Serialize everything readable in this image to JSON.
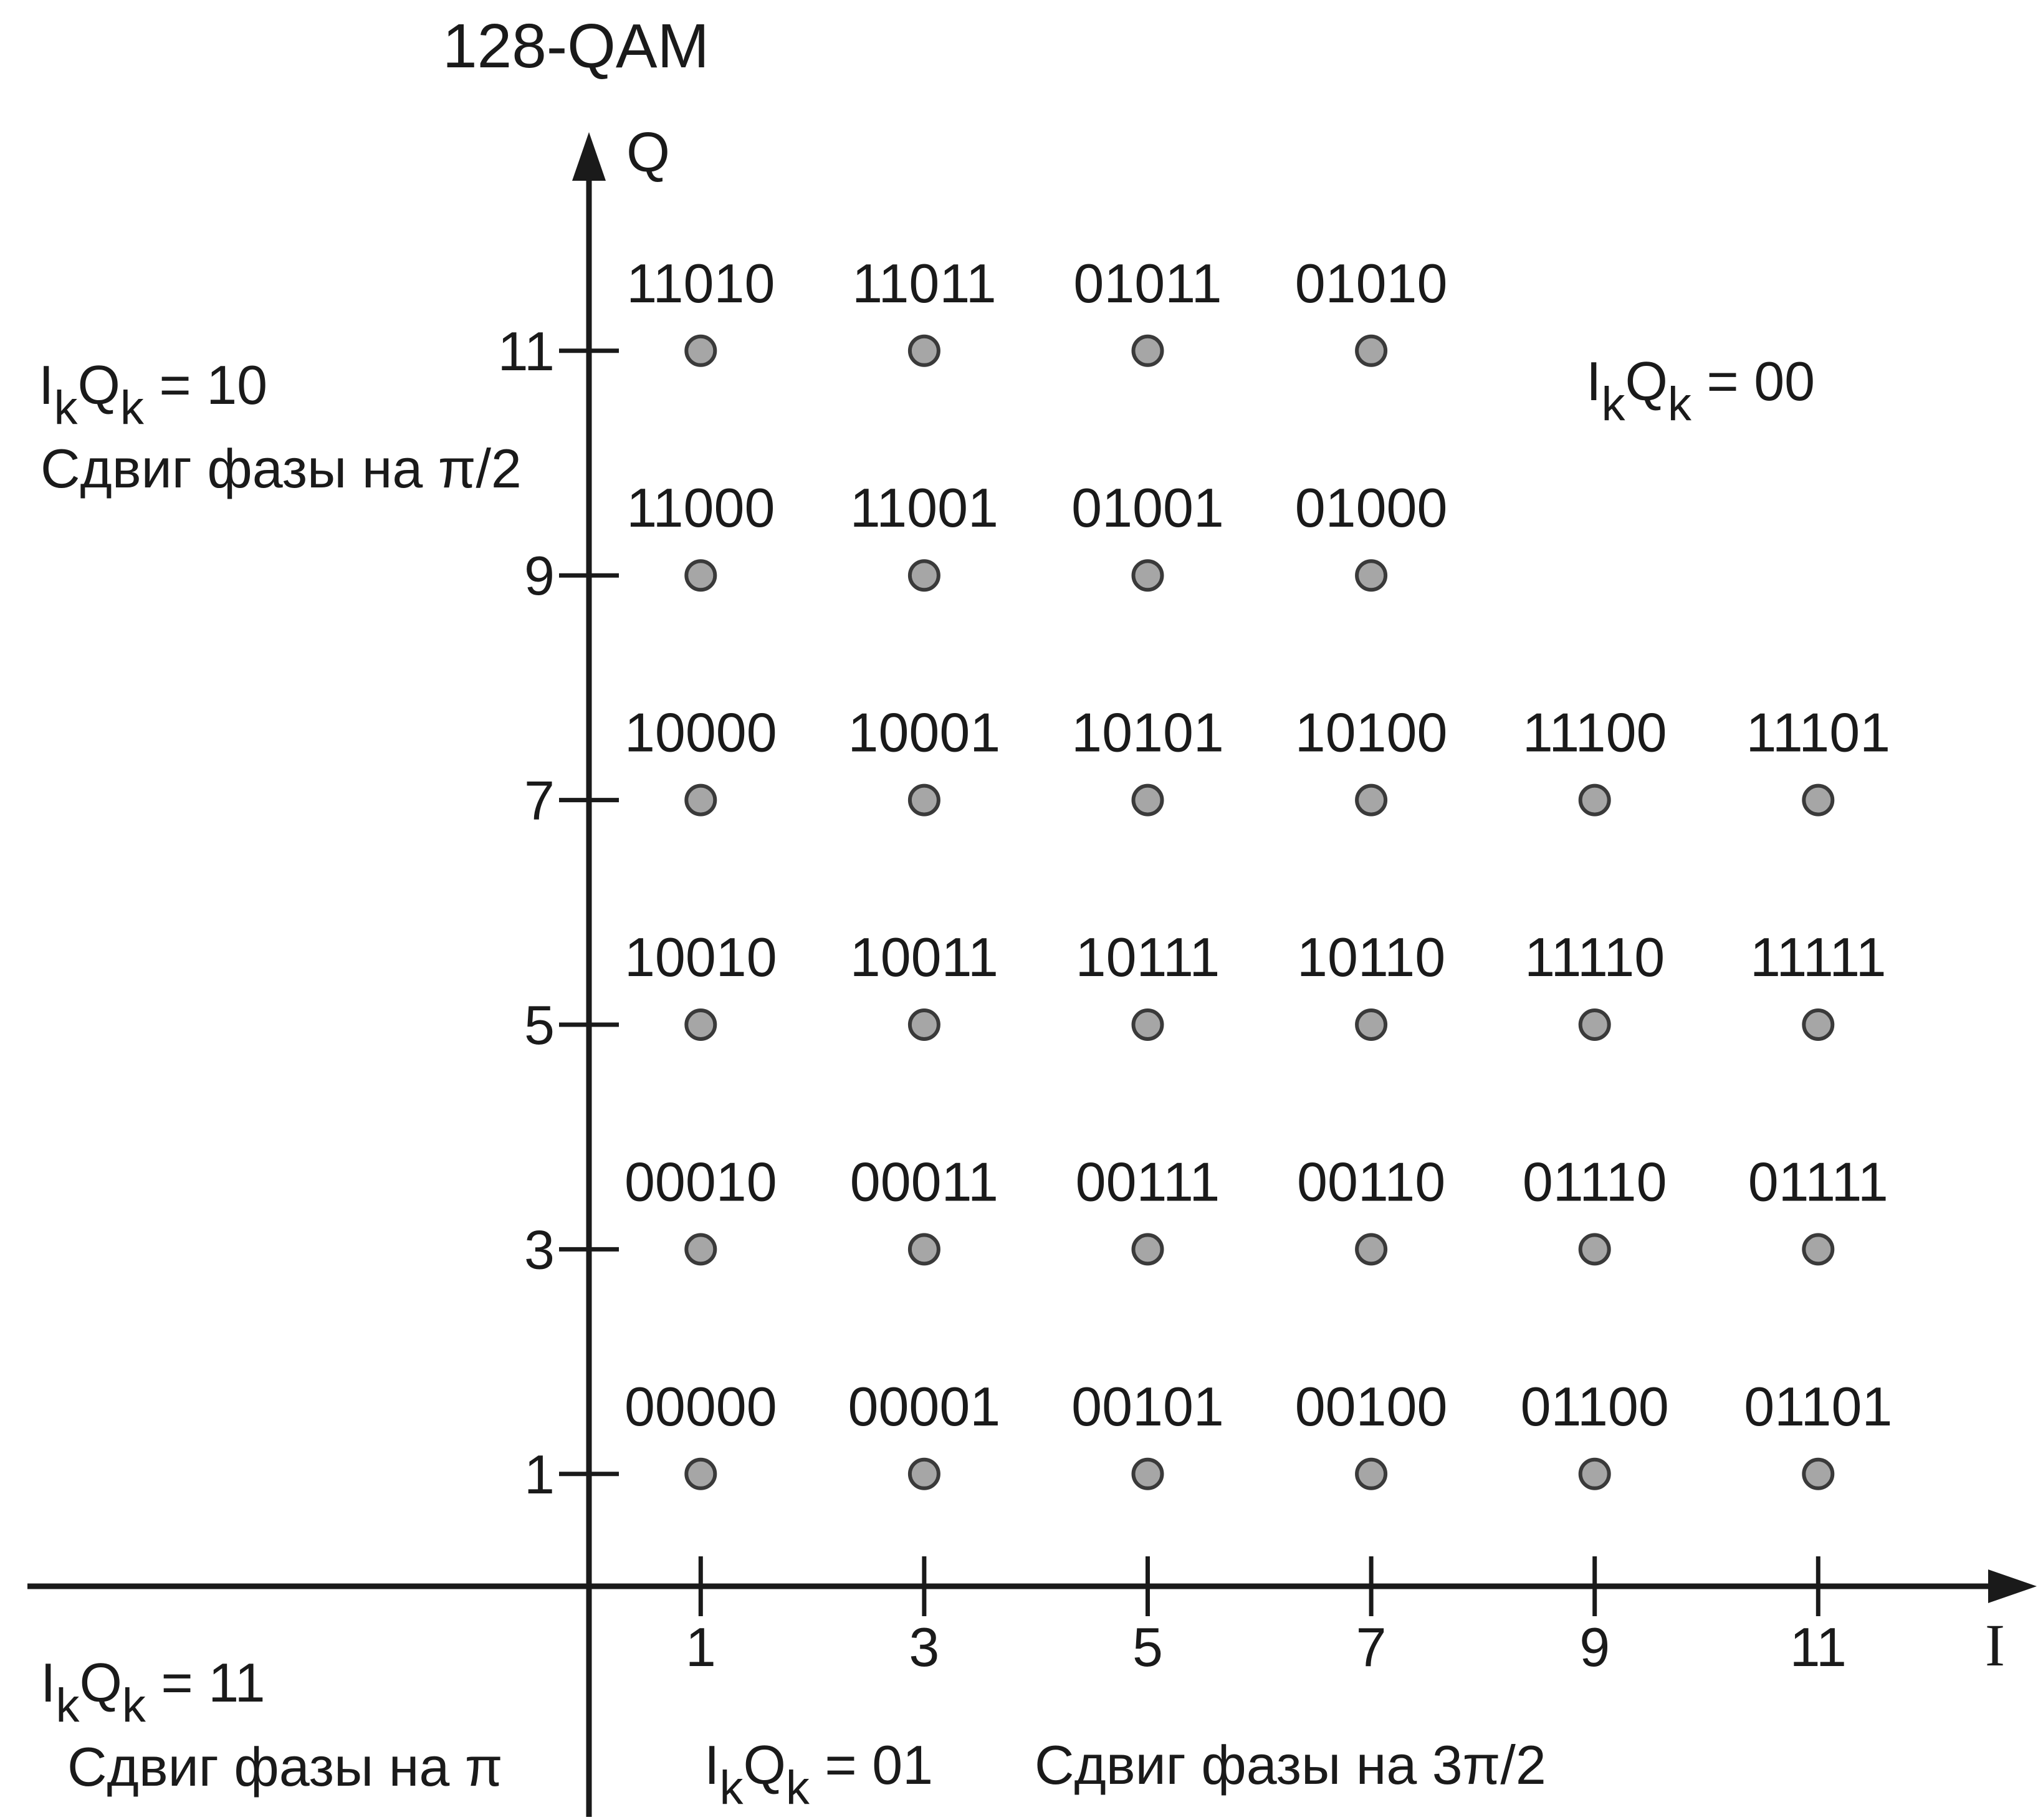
{
  "title": "128-QAM",
  "axes": {
    "y_label": "Q",
    "x_label": "I",
    "x_ticks": [
      "1",
      "3",
      "5",
      "7",
      "9",
      "11"
    ],
    "y_ticks": [
      "1",
      "3",
      "5",
      "7",
      "9",
      "11"
    ]
  },
  "quadrant_labels": {
    "top_left": {
      "prefix": "I",
      "sub1": "k",
      "mid": "Q",
      "sub2": "k",
      "suffix": " = 10",
      "phase": "Сдвиг фазы на π/2"
    },
    "top_right": {
      "prefix": "I",
      "sub1": "k",
      "mid": "Q",
      "sub2": "k",
      "suffix": " = 00"
    },
    "bottom_left": {
      "prefix": "I",
      "sub1": "k",
      "mid": "Q",
      "sub2": "k",
      "suffix": " = 11",
      "phase": "Сдвиг фазы на π"
    },
    "bottom_right": {
      "prefix": "I",
      "sub1": "k",
      "mid": "Q",
      "sub2": "k",
      "suffix": " = 01",
      "phase": "Сдвиг фазы на 3π/2"
    }
  },
  "colors": {
    "axis": "#1a1a1a",
    "point_fill": "#a6a6a6",
    "point_stroke": "#3a3a3a"
  },
  "chart_data": {
    "type": "scatter",
    "title": "128-QAM",
    "xlabel": "I",
    "ylabel": "Q",
    "xlim": [
      0,
      12
    ],
    "ylim": [
      0,
      12
    ],
    "points": [
      {
        "x": 1,
        "y": 11,
        "label": "11010"
      },
      {
        "x": 3,
        "y": 11,
        "label": "11011"
      },
      {
        "x": 5,
        "y": 11,
        "label": "01011"
      },
      {
        "x": 7,
        "y": 11,
        "label": "01010"
      },
      {
        "x": 1,
        "y": 9,
        "label": "11000"
      },
      {
        "x": 3,
        "y": 9,
        "label": "11001"
      },
      {
        "x": 5,
        "y": 9,
        "label": "01001"
      },
      {
        "x": 7,
        "y": 9,
        "label": "01000"
      },
      {
        "x": 1,
        "y": 7,
        "label": "10000"
      },
      {
        "x": 3,
        "y": 7,
        "label": "10001"
      },
      {
        "x": 5,
        "y": 7,
        "label": "10101"
      },
      {
        "x": 7,
        "y": 7,
        "label": "10100"
      },
      {
        "x": 9,
        "y": 7,
        "label": "11100"
      },
      {
        "x": 11,
        "y": 7,
        "label": "11101"
      },
      {
        "x": 1,
        "y": 5,
        "label": "10010"
      },
      {
        "x": 3,
        "y": 5,
        "label": "10011"
      },
      {
        "x": 5,
        "y": 5,
        "label": "10111"
      },
      {
        "x": 7,
        "y": 5,
        "label": "10110"
      },
      {
        "x": 9,
        "y": 5,
        "label": "11110"
      },
      {
        "x": 11,
        "y": 5,
        "label": "11111"
      },
      {
        "x": 1,
        "y": 3,
        "label": "00010"
      },
      {
        "x": 3,
        "y": 3,
        "label": "00011"
      },
      {
        "x": 5,
        "y": 3,
        "label": "00111"
      },
      {
        "x": 7,
        "y": 3,
        "label": "00110"
      },
      {
        "x": 9,
        "y": 3,
        "label": "01110"
      },
      {
        "x": 11,
        "y": 3,
        "label": "01111"
      },
      {
        "x": 1,
        "y": 1,
        "label": "00000"
      },
      {
        "x": 3,
        "y": 1,
        "label": "00001"
      },
      {
        "x": 5,
        "y": 1,
        "label": "00101"
      },
      {
        "x": 7,
        "y": 1,
        "label": "00100"
      },
      {
        "x": 9,
        "y": 1,
        "label": "01100"
      },
      {
        "x": 11,
        "y": 1,
        "label": "01101"
      }
    ]
  }
}
